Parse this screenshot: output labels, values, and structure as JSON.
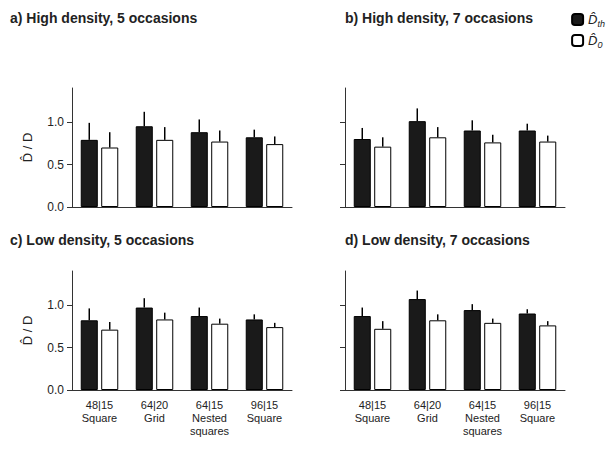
{
  "chart_data": [
    {
      "type": "bar",
      "title": "a) High density, 5 occasions",
      "ylabel": "D̂ / D",
      "categories": [
        "48|15\nSquare",
        "64|20\nGrid",
        "64|15\nNested\nsquares",
        "96|15\nSquare"
      ],
      "series": [
        {
          "name": "D̂th",
          "color": "#1a1a1a",
          "values": [
            0.79,
            0.95,
            0.88,
            0.82
          ],
          "errors": [
            0.2,
            0.17,
            0.15,
            0.09
          ]
        },
        {
          "name": "D̂0",
          "color": "#ffffff",
          "values": [
            0.7,
            0.79,
            0.77,
            0.74
          ],
          "errors": [
            0.18,
            0.15,
            0.13,
            0.09
          ]
        }
      ],
      "ylim": [
        0,
        1.4
      ],
      "yticks": [
        {
          "value": 0,
          "label": "0.0"
        },
        {
          "value": 0.5,
          "label": "0.5"
        },
        {
          "value": 1,
          "label": "1.0"
        }
      ],
      "tick_labels": "y"
    },
    {
      "type": "bar",
      "title": "b) High density, 7 occasions",
      "legend": "right",
      "categories": [
        "48|15\nSquare",
        "64|20\nGrid",
        "64|15\nNested\nsquares",
        "96|15\nSquare"
      ],
      "series": [
        {
          "name": "D̂th",
          "color": "#1a1a1a",
          "values": [
            0.8,
            1.01,
            0.9,
            0.9
          ],
          "errors": [
            0.13,
            0.15,
            0.12,
            0.08
          ]
        },
        {
          "name": "D̂0",
          "color": "#ffffff",
          "values": [
            0.71,
            0.82,
            0.76,
            0.77
          ],
          "errors": [
            0.11,
            0.12,
            0.09,
            0.07
          ]
        }
      ],
      "ylim": [
        0,
        1.4
      ],
      "yticks": [
        {
          "value": 0,
          "label": "0.0"
        },
        {
          "value": 0.5,
          "label": "0.5"
        },
        {
          "value": 1,
          "label": "1.0"
        }
      ],
      "tick_labels": false
    },
    {
      "type": "bar",
      "title": "c) Low density, 5 occasions",
      "ylabel": "D̂ / D",
      "categories": [
        "48|15\nSquare",
        "64|20\nGrid",
        "64|15\nNested\nsquares",
        "96|15\nSquare"
      ],
      "series": [
        {
          "name": "D̂th",
          "color": "#1a1a1a",
          "values": [
            0.82,
            0.97,
            0.87,
            0.83
          ],
          "errors": [
            0.14,
            0.11,
            0.1,
            0.06
          ]
        },
        {
          "name": "D̂0",
          "color": "#ffffff",
          "values": [
            0.71,
            0.83,
            0.78,
            0.74
          ],
          "errors": [
            0.09,
            0.08,
            0.06,
            0.05
          ]
        }
      ],
      "ylim": [
        0,
        1.4
      ],
      "yticks": [
        {
          "value": 0,
          "label": "0.0"
        },
        {
          "value": 0.5,
          "label": "0.5"
        },
        {
          "value": 1,
          "label": "1.0"
        }
      ],
      "tick_labels": true
    },
    {
      "type": "bar",
      "title": "d) Low density, 7 occasions",
      "categories": [
        "48|15\nSquare",
        "64|20\nGrid",
        "64|15\nNested\nsquares",
        "96|15\nSquare"
      ],
      "series": [
        {
          "name": "D̂th",
          "color": "#1a1a1a",
          "values": [
            0.87,
            1.07,
            0.94,
            0.9
          ],
          "errors": [
            0.1,
            0.1,
            0.07,
            0.05
          ]
        },
        {
          "name": "D̂0",
          "color": "#ffffff",
          "values": [
            0.72,
            0.82,
            0.79,
            0.76
          ],
          "errors": [
            0.09,
            0.07,
            0.05,
            0.05
          ]
        }
      ],
      "ylim": [
        0,
        1.4
      ],
      "yticks": [
        {
          "value": 0,
          "label": "0.0"
        },
        {
          "value": 0.5,
          "label": "0.5"
        },
        {
          "value": 1,
          "label": "1.0"
        }
      ],
      "tick_labels": "x"
    }
  ]
}
